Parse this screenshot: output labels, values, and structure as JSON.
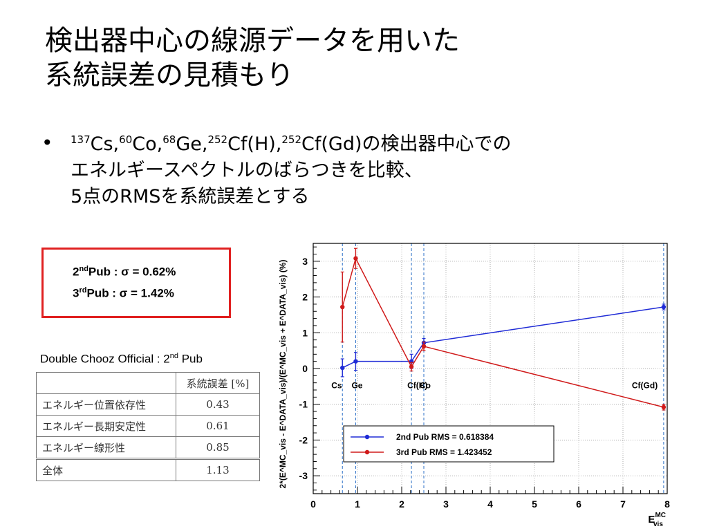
{
  "slide": {
    "title_line1": "検出器中心の線源データを用いた",
    "title_line2": "系統誤差の見積もり",
    "bullet_symbol": "•",
    "bullet": {
      "line1_suffix": "の検出器中心での",
      "line2": "エネルギースペクトルのばらつきを比較、",
      "line3": "5点のRMSを系統誤差とする",
      "sources": [
        {
          "mass": "137",
          "name": "Cs,"
        },
        {
          "mass": "60",
          "name": "Co,"
        },
        {
          "mass": "68",
          "name": "Ge,"
        },
        {
          "mass": "252",
          "name": "Cf(H),"
        },
        {
          "mass": "252",
          "name": "Cf(Gd)"
        }
      ]
    },
    "box": {
      "pub2_label": "nd",
      "pub2_prefix": "2",
      "pub2_rest": "Pub :    σ = 0.62%",
      "pub3_prefix": "3",
      "pub3_label": "rd",
      "pub3_rest": "Pub :    σ = 1.42%",
      "border_color": "#e02020"
    },
    "caption": {
      "prefix": "Double Chooz Official : 2",
      "sup": "nd",
      "suffix": " Pub"
    },
    "table": {
      "header": [
        "",
        "系統誤差 [%]"
      ],
      "rows": [
        [
          "エネルギー位置依存性",
          "0.43"
        ],
        [
          "エネルギー長期安定性",
          "0.61"
        ],
        [
          "エネルギー線形性",
          "0.85"
        ]
      ],
      "total": [
        "全体",
        "1.13"
      ]
    }
  },
  "chart_data": {
    "type": "line",
    "xlim": [
      0,
      8
    ],
    "ylim": [
      -3.5,
      3.5
    ],
    "x_ticks": [
      0,
      1,
      2,
      3,
      4,
      5,
      6,
      7,
      8
    ],
    "y_ticks": [
      -3,
      -2,
      -1,
      0,
      1,
      2,
      3
    ],
    "xlabel_main": "E",
    "xlabel_sup": "MC",
    "xlabel_sub": "vis",
    "ylabel": "2*(E^MC_vis - E^DATA_vis)/(E^MC_vis + E^DATA_vis) (%)",
    "grid": true,
    "source_lines": [
      {
        "x": 0.66,
        "label": "Cs"
      },
      {
        "x": 0.96,
        "label": "Ge"
      },
      {
        "x": 2.22,
        "label": "Cf(H)"
      },
      {
        "x": 2.5,
        "label": "Co"
      },
      {
        "x": 7.92,
        "label": "Cf(Gd)"
      }
    ],
    "series": [
      {
        "name": "2nd Pub RMS = 0.618384",
        "color": "#1f2bd6",
        "points": [
          {
            "x": 0.66,
            "y": 0.02,
            "err": 0.25
          },
          {
            "x": 0.96,
            "y": 0.2,
            "err": 0.25
          },
          {
            "x": 2.22,
            "y": 0.2,
            "err": 0.2
          },
          {
            "x": 2.5,
            "y": 0.72,
            "err": 0.12
          },
          {
            "x": 7.92,
            "y": 1.72,
            "err": 0.08
          }
        ]
      },
      {
        "name": "3rd Pub RMS = 1.423452",
        "color": "#d01a1a",
        "points": [
          {
            "x": 0.66,
            "y": 1.72,
            "err": 0.98
          },
          {
            "x": 0.96,
            "y": 3.08,
            "err": 0.28
          },
          {
            "x": 2.22,
            "y": 0.05,
            "err": 0.12
          },
          {
            "x": 2.5,
            "y": 0.62,
            "err": 0.12
          },
          {
            "x": 7.92,
            "y": -1.08,
            "err": 0.08
          }
        ]
      }
    ]
  }
}
